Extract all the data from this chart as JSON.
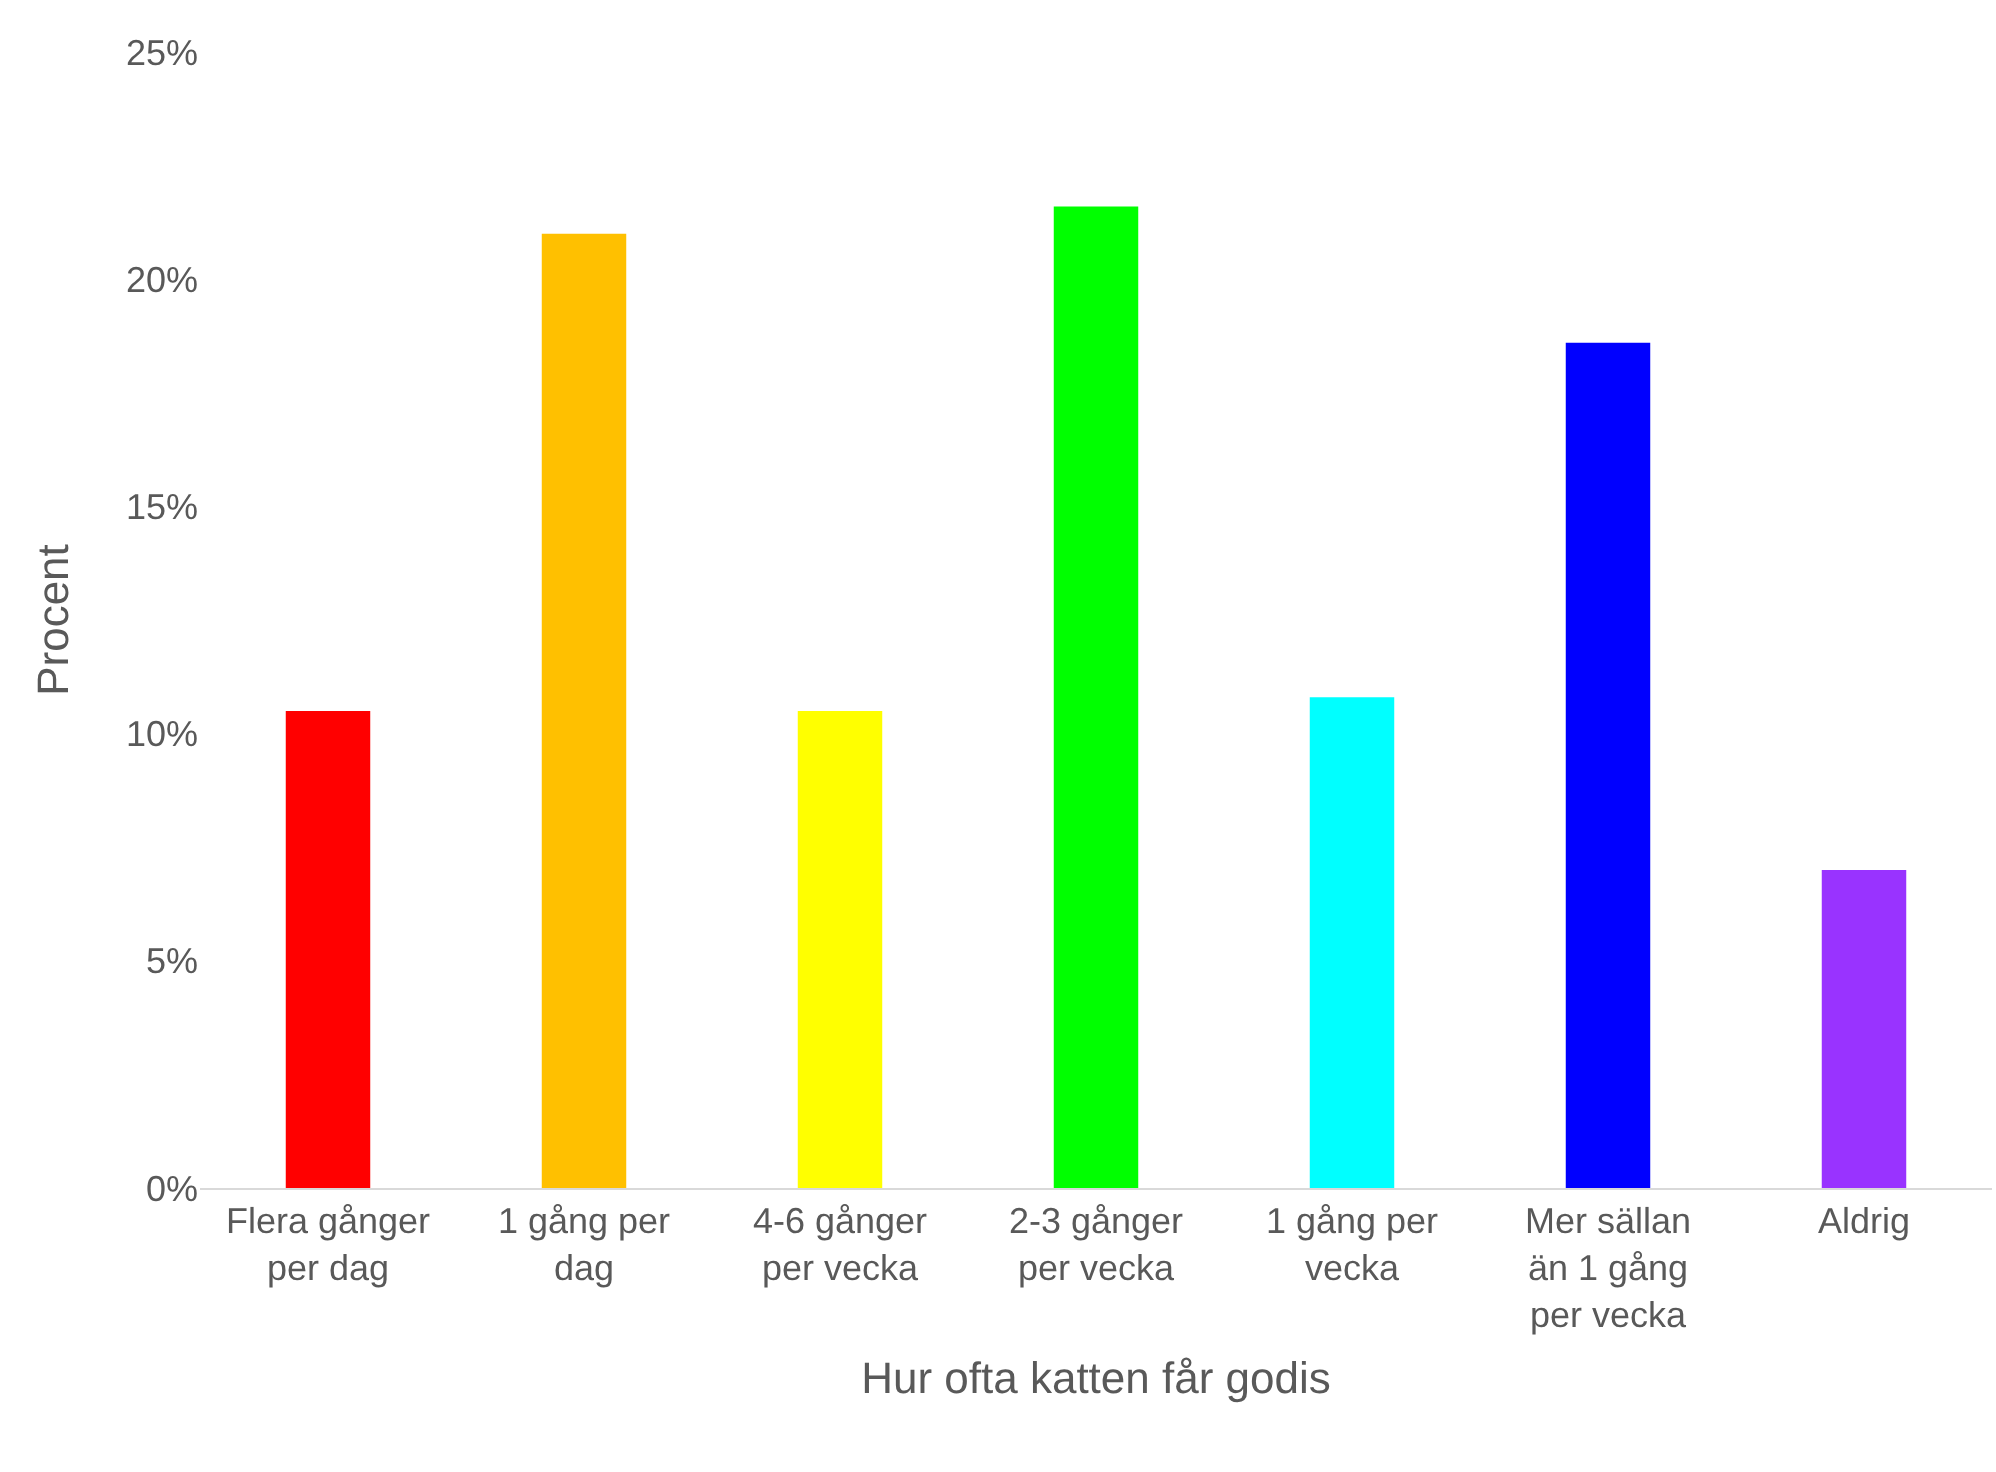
{
  "chart_data": {
    "type": "bar",
    "xlabel": "Hur ofta katten får godis",
    "ylabel": "Procent",
    "categories": [
      "Flera gånger per dag",
      "1 gång per dag",
      "4-6 gånger per vecka",
      "2-3 gånger per vecka",
      "1 gång per vecka",
      "Mer sällan än 1 gång per vecka",
      "Aldrig"
    ],
    "values": [
      10.5,
      21.0,
      10.5,
      21.6,
      10.8,
      18.6,
      7.0
    ],
    "colors": [
      "#ff0000",
      "#ffc000",
      "#ffff00",
      "#00ff00",
      "#00ffff",
      "#0000ff",
      "#9933ff"
    ],
    "ylim": [
      0,
      25
    ],
    "yticks": [
      {
        "value": 0,
        "label": "0%"
      },
      {
        "value": 5,
        "label": "5%"
      },
      {
        "value": 10,
        "label": "10%"
      },
      {
        "value": 15,
        "label": "15%"
      },
      {
        "value": 20,
        "label": "20%"
      },
      {
        "value": 25,
        "label": "25%"
      }
    ],
    "grid": false
  }
}
